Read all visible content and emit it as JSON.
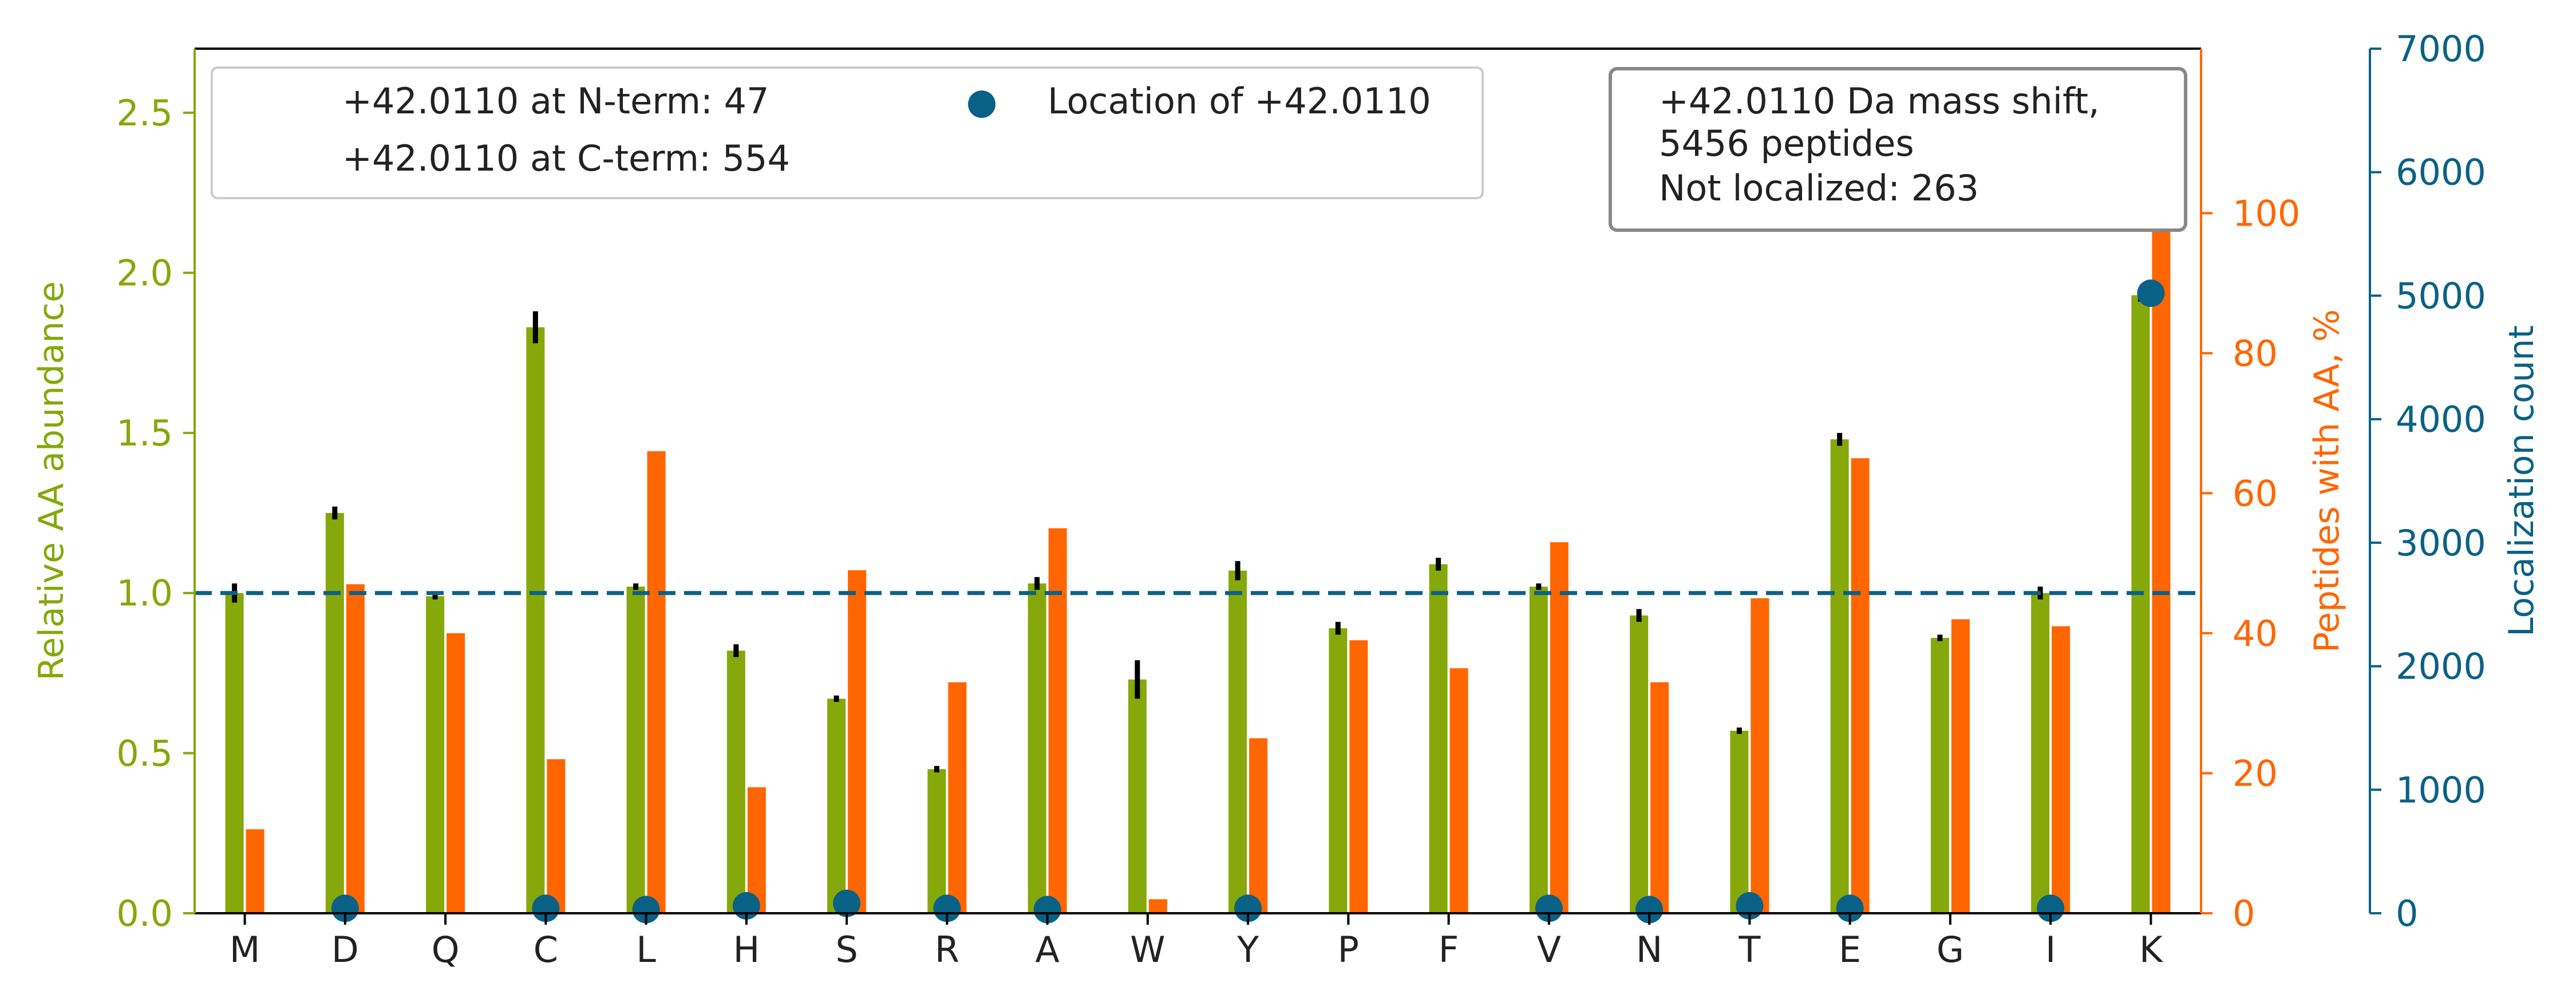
{
  "chart_data": {
    "type": "bar",
    "categories": [
      "M",
      "D",
      "Q",
      "C",
      "L",
      "H",
      "S",
      "R",
      "A",
      "W",
      "Y",
      "P",
      "F",
      "V",
      "N",
      "T",
      "E",
      "G",
      "I",
      "K"
    ],
    "series": [
      {
        "role": "relative_abundance",
        "axis": "left",
        "color": "#86a80a",
        "values": [
          1.0,
          1.25,
          0.99,
          1.83,
          1.02,
          0.82,
          0.67,
          0.45,
          1.03,
          0.73,
          1.07,
          0.89,
          1.09,
          1.02,
          0.93,
          0.57,
          1.48,
          0.86,
          1.0,
          1.93
        ],
        "errors": [
          0.03,
          0.02,
          0.01,
          0.05,
          0.01,
          0.02,
          0.01,
          0.01,
          0.02,
          0.06,
          0.03,
          0.02,
          0.02,
          0.01,
          0.02,
          0.01,
          0.02,
          0.01,
          0.02,
          0.02
        ]
      },
      {
        "role": "peptides_with_aa_percent",
        "axis": "right",
        "color": "#ff6600",
        "values": [
          12,
          47,
          40,
          22,
          66,
          18,
          49,
          33,
          55,
          2,
          25,
          39,
          35,
          53,
          33,
          45,
          65,
          42,
          41,
          99
        ]
      },
      {
        "name": "Location of +42.0110",
        "role": "localization_count",
        "axis": "right2",
        "color": "#0a6186",
        "values": [
          null,
          40,
          null,
          40,
          30,
          60,
          80,
          40,
          30,
          null,
          40,
          null,
          null,
          40,
          30,
          60,
          40,
          null,
          40,
          5020
        ]
      }
    ],
    "ylabel": "Relative AA abundance",
    "y2label": "Peptides with AA, %",
    "y3label": "Localization count",
    "ylim": [
      0,
      2.7
    ],
    "y2lim": [
      0,
      123.5
    ],
    "y3lim": [
      0,
      7000
    ],
    "yticks": [
      "0.0",
      "0.5",
      "1.0",
      "1.5",
      "2.0",
      "2.5"
    ],
    "y2ticks": [
      "0",
      "20",
      "40",
      "60",
      "80",
      "100"
    ],
    "y3ticks": [
      "0",
      "1000",
      "2000",
      "3000",
      "4000",
      "5000",
      "6000",
      "7000"
    ],
    "reference_line": 1.0,
    "grid": false,
    "legend": {
      "placement": "top-left",
      "entries": [
        "+42.0110 at N-term: 47",
        "+42.0110 at C-term: 554",
        "Location of +42.0110"
      ]
    },
    "annotation_box": {
      "placement": "top-right",
      "lines": [
        "+42.0110 Da mass shift,",
        "5456 peptides",
        "Not localized: 263"
      ]
    }
  }
}
